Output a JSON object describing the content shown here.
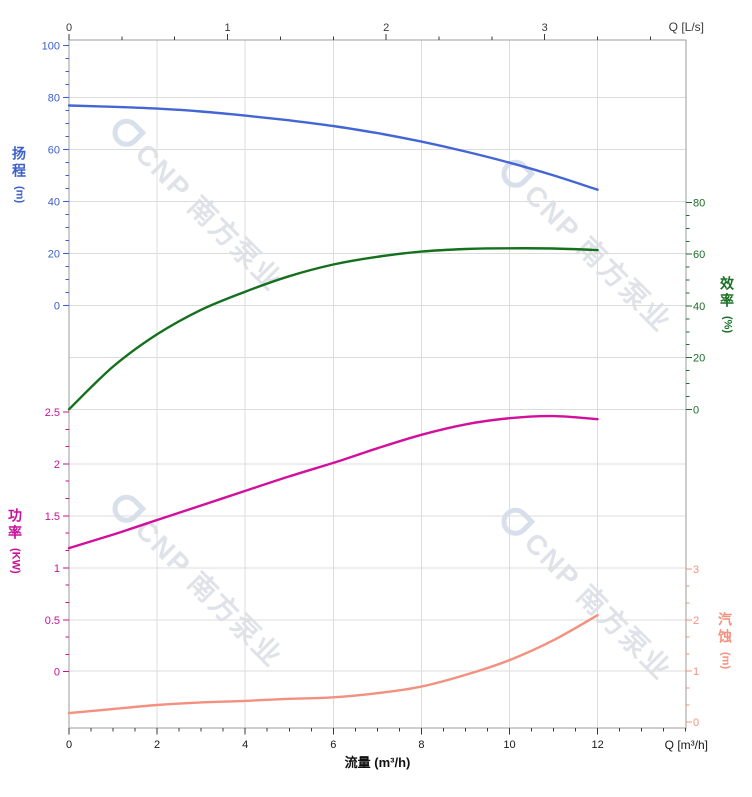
{
  "page": {
    "background": "#ffffff"
  },
  "labels": {
    "q_top": "Q [L/s]",
    "q_bottom": "Q [m³/h]",
    "flow_bottom": "流量 (m³/h)",
    "head": {
      "name": "扬程",
      "unit": "(m)"
    },
    "power": {
      "name": "功率",
      "unit": "(KW)"
    },
    "eff": {
      "name": "效率",
      "unit": "(%)"
    },
    "npsh": {
      "name": "汽蚀",
      "unit": "(m)"
    }
  },
  "watermark": {
    "text": "CNP 南方泵业"
  },
  "chart_data": {
    "type": "line",
    "title": "",
    "xlabel": "流量 (m³/h)",
    "x_top_unit_label": "Q [L/s]",
    "x_bottom_unit_label": "Q [m³/h]",
    "x": [
      0,
      1,
      2,
      3,
      4,
      5,
      6,
      7,
      8,
      9,
      10,
      11,
      12
    ],
    "x_axis": {
      "min": 0,
      "max": 14,
      "major_ticks": [
        0,
        2,
        4,
        6,
        8,
        10,
        12
      ],
      "tick_labels": [
        "0",
        "2",
        "4",
        "6",
        "8",
        "10",
        "12"
      ],
      "minor_per_major": 4,
      "extend_to": 14,
      "grid": true
    },
    "x_axis_top": {
      "unit": "L/s",
      "major_ticks": [
        0,
        1,
        2,
        3
      ],
      "tick_labels": [
        "0",
        "1",
        "2",
        "3"
      ],
      "minor_per_major": 3,
      "extend_to": 3.9,
      "m3h_per_Ls": 3.6
    },
    "y_axes": {
      "head": {
        "label": "扬程",
        "unit": "m",
        "side": "left",
        "color": "#3c5fc9",
        "min": 0,
        "max": 100,
        "major_ticks": [
          0,
          20,
          40,
          60,
          80,
          100
        ],
        "tick_labels": [
          "0",
          "20",
          "40",
          "60",
          "80",
          "100"
        ],
        "minor_per_major": 4
      },
      "eff": {
        "label": "效率",
        "unit": "%",
        "side": "right",
        "color": "#1b6e26",
        "min": 0,
        "max": 80,
        "major_ticks": [
          0,
          20,
          40,
          60,
          80
        ],
        "tick_labels": [
          "0",
          "20",
          "40",
          "60",
          "80"
        ],
        "minor_per_major": 4
      },
      "power": {
        "label": "功率",
        "unit": "KW",
        "side": "left",
        "color": "#c9109a",
        "min": 0,
        "max": 2.5,
        "major_ticks": [
          0,
          0.5,
          1,
          1.5,
          2,
          2.5
        ],
        "tick_labels": [
          "0",
          "0.5",
          "1",
          "1.5",
          "2",
          "2.5"
        ],
        "minor_per_major": 3
      },
      "npsh": {
        "label": "汽蚀",
        "unit": "m",
        "side": "right",
        "color": "#f5917f",
        "min": 0,
        "max": 3,
        "major_ticks": [
          0,
          1,
          2,
          3
        ],
        "tick_labels": [
          "0",
          "1",
          "2",
          "3"
        ],
        "minor_per_major": 3
      }
    },
    "h_gridlines": [
      {
        "axis": "head",
        "values": [
          0,
          20,
          40,
          60,
          80
        ]
      },
      {
        "axis": "eff",
        "values": [
          0,
          20
        ]
      },
      {
        "axis": "power",
        "values": [
          0.5,
          1,
          1.5,
          2
        ]
      },
      {
        "axis": "npsh",
        "values": [
          1,
          2
        ]
      }
    ],
    "series": [
      {
        "id": "head",
        "name": "扬程",
        "axis": "head",
        "color": "#4466d5",
        "width": 2.4,
        "values": [
          77,
          76.5,
          75.8,
          74.7,
          73.1,
          71.3,
          69.1,
          66.4,
          63.1,
          59.3,
          55.0,
          50.1,
          44.6
        ]
      },
      {
        "id": "efficiency",
        "name": "效率",
        "axis": "eff",
        "color": "#15701d",
        "width": 2.4,
        "values": [
          0,
          16.5,
          29,
          38.5,
          45.5,
          51.5,
          56,
          59,
          61,
          62,
          62.3,
          62.2,
          61.6
        ]
      },
      {
        "id": "power",
        "name": "功率",
        "axis": "power",
        "color": "#d2109b",
        "width": 2.4,
        "values": [
          1.19,
          1.32,
          1.46,
          1.6,
          1.74,
          1.88,
          2.01,
          2.15,
          2.28,
          2.38,
          2.44,
          2.46,
          2.43
        ]
      },
      {
        "id": "npsh",
        "name": "汽蚀",
        "axis": "npsh",
        "color": "#f4907f",
        "width": 2.4,
        "values": [
          0.17,
          0.25,
          0.33,
          0.38,
          0.41,
          0.45,
          0.48,
          0.56,
          0.69,
          0.92,
          1.21,
          1.6,
          2.09
        ]
      }
    ]
  }
}
